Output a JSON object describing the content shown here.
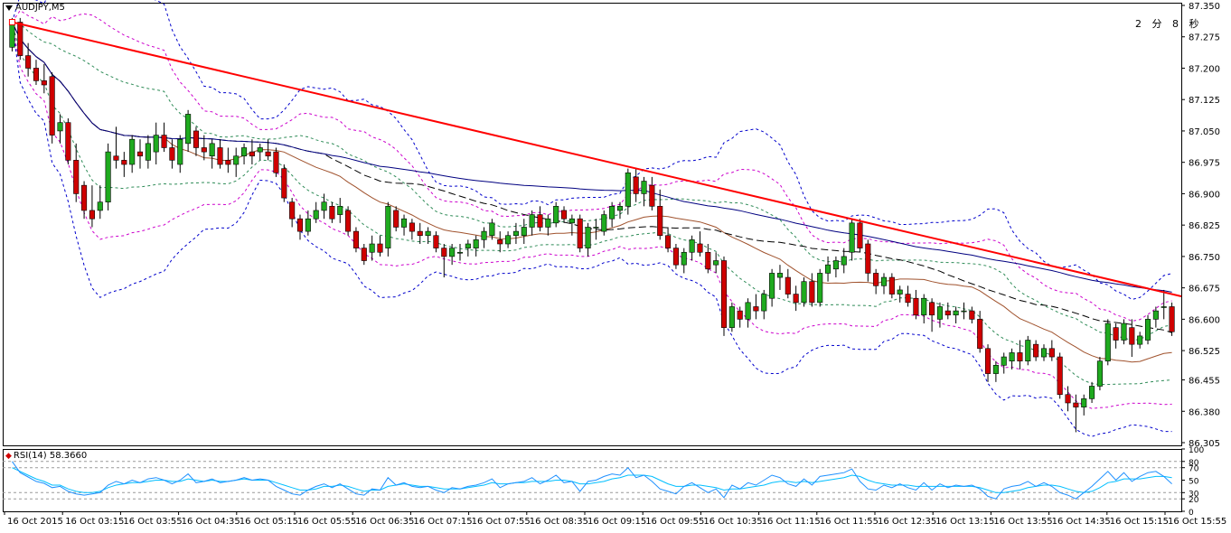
{
  "symbol_label": "AUDJPY,M5",
  "countdown": "2 分 8 秒",
  "rsi_label": "RSI(14) 58.3660",
  "colors": {
    "bull": "#1faa1f",
    "bear": "#d00000",
    "trendline": "#ff0000",
    "ma_dark": "#000000",
    "ma_navy": "#000080",
    "ma_brown": "#a0522d",
    "band_blue": "#0000cc",
    "band_magenta": "#cc00cc",
    "band_green": "#2e8b57",
    "rsi_line": "#1e90ff",
    "rsi_line2": "#00bfff"
  },
  "price_axis": [
    "87.350",
    "87.275",
    "87.200",
    "87.125",
    "87.050",
    "86.975",
    "86.900",
    "86.825",
    "86.750",
    "86.675",
    "86.600",
    "86.525",
    "86.455",
    "86.380",
    "86.305"
  ],
  "rsi_axis": [
    "100",
    "80",
    "70",
    "50",
    "30",
    "20",
    "0"
  ],
  "time_axis": [
    "16 Oct 2015",
    "16 Oct 03:15",
    "16 Oct 03:55",
    "16 Oct 04:35",
    "16 Oct 05:15",
    "16 Oct 05:55",
    "16 Oct 06:35",
    "16 Oct 07:15",
    "16 Oct 07:55",
    "16 Oct 08:35",
    "16 Oct 09:15",
    "16 Oct 09:55",
    "16 Oct 10:35",
    "16 Oct 11:15",
    "16 Oct 11:55",
    "16 Oct 12:35",
    "16 Oct 13:15",
    "16 Oct 13:55",
    "16 Oct 14:35",
    "16 Oct 15:15",
    "16 Oct 15:55"
  ],
  "chart_data": {
    "type": "candlestick",
    "ylim": [
      86.305,
      87.35
    ],
    "rsi_ylim": [
      0,
      100
    ],
    "candles": [
      [
        87.25,
        87.32,
        87.24,
        87.31
      ],
      [
        87.31,
        87.32,
        87.22,
        87.23
      ],
      [
        87.23,
        87.26,
        87.18,
        87.2
      ],
      [
        87.2,
        87.22,
        87.16,
        87.17
      ],
      [
        87.17,
        87.21,
        87.14,
        87.16
      ],
      [
        87.18,
        87.19,
        87.02,
        87.04
      ],
      [
        87.05,
        87.09,
        87.02,
        87.07
      ],
      [
        87.07,
        87.08,
        86.97,
        86.98
      ],
      [
        86.98,
        87.02,
        86.88,
        86.9
      ],
      [
        86.92,
        86.93,
        86.84,
        86.86
      ],
      [
        86.86,
        86.92,
        86.82,
        86.84
      ],
      [
        86.86,
        86.92,
        86.84,
        86.88
      ],
      [
        86.88,
        87.02,
        86.86,
        87.0
      ],
      [
        86.99,
        87.06,
        86.96,
        86.98
      ],
      [
        86.98,
        87.0,
        86.94,
        86.97
      ],
      [
        86.97,
        87.04,
        86.95,
        87.03
      ],
      [
        87.0,
        87.03,
        86.96,
        86.99
      ],
      [
        86.98,
        87.04,
        86.96,
        87.02
      ],
      [
        87.0,
        87.07,
        86.97,
        87.04
      ],
      [
        87.04,
        87.07,
        87.0,
        87.01
      ],
      [
        87.01,
        87.03,
        86.96,
        86.98
      ],
      [
        86.97,
        87.04,
        86.95,
        87.03
      ],
      [
        87.02,
        87.1,
        87.0,
        87.09
      ],
      [
        87.05,
        87.06,
        86.99,
        87.01
      ],
      [
        87.01,
        87.04,
        86.98,
        87.0
      ],
      [
        86.99,
        87.03,
        86.96,
        87.02
      ],
      [
        87.01,
        87.03,
        86.96,
        86.97
      ],
      [
        86.98,
        87.01,
        86.95,
        86.97
      ],
      [
        86.97,
        87.01,
        86.94,
        86.99
      ],
      [
        86.99,
        87.02,
        86.97,
        87.01
      ],
      [
        87.0,
        87.03,
        86.97,
        86.99
      ],
      [
        87.0,
        87.02,
        86.98,
        87.01
      ],
      [
        87.0,
        87.03,
        86.98,
        86.99
      ],
      [
        87.0,
        87.01,
        86.94,
        86.95
      ],
      [
        86.96,
        86.97,
        86.88,
        86.89
      ],
      [
        86.88,
        86.89,
        86.82,
        86.84
      ],
      [
        86.84,
        86.85,
        86.79,
        86.81
      ],
      [
        86.81,
        86.86,
        86.8,
        86.84
      ],
      [
        86.84,
        86.88,
        86.83,
        86.86
      ],
      [
        86.86,
        86.9,
        86.84,
        86.88
      ],
      [
        86.87,
        86.88,
        86.83,
        86.84
      ],
      [
        86.85,
        86.89,
        86.83,
        86.87
      ],
      [
        86.86,
        86.87,
        86.8,
        86.81
      ],
      [
        86.81,
        86.82,
        86.76,
        86.77
      ],
      [
        86.77,
        86.78,
        86.73,
        86.74
      ],
      [
        86.76,
        86.8,
        86.74,
        86.78
      ],
      [
        86.78,
        86.8,
        86.75,
        86.76
      ],
      [
        86.77,
        86.88,
        86.75,
        86.87
      ],
      [
        86.86,
        86.87,
        86.81,
        86.82
      ],
      [
        86.82,
        86.85,
        86.8,
        86.84
      ],
      [
        86.83,
        86.84,
        86.79,
        86.81
      ],
      [
        86.81,
        86.83,
        86.78,
        86.8
      ],
      [
        86.8,
        86.82,
        86.78,
        86.81
      ],
      [
        86.8,
        86.81,
        86.76,
        86.77
      ],
      [
        86.77,
        86.78,
        86.7,
        86.75
      ],
      [
        86.75,
        86.78,
        86.73,
        86.77
      ],
      [
        86.76,
        86.78,
        86.74,
        86.76
      ],
      [
        86.77,
        86.79,
        86.75,
        86.78
      ],
      [
        86.77,
        86.8,
        86.75,
        86.79
      ],
      [
        86.79,
        86.82,
        86.77,
        86.81
      ],
      [
        86.8,
        86.84,
        86.79,
        86.83
      ],
      [
        86.79,
        86.81,
        86.76,
        86.78
      ],
      [
        86.78,
        86.81,
        86.77,
        86.8
      ],
      [
        86.8,
        86.83,
        86.78,
        86.81
      ],
      [
        86.8,
        86.84,
        86.78,
        86.82
      ],
      [
        86.82,
        86.86,
        86.8,
        86.85
      ],
      [
        86.85,
        86.87,
        86.81,
        86.82
      ],
      [
        86.82,
        86.85,
        86.8,
        86.84
      ],
      [
        86.83,
        86.88,
        86.82,
        86.87
      ],
      [
        86.86,
        86.87,
        86.83,
        86.84
      ],
      [
        86.83,
        86.85,
        86.8,
        86.84
      ],
      [
        86.84,
        86.85,
        86.76,
        86.77
      ],
      [
        86.77,
        86.83,
        86.75,
        86.82
      ],
      [
        86.82,
        86.84,
        86.79,
        86.82
      ],
      [
        86.81,
        86.86,
        86.8,
        86.85
      ],
      [
        86.84,
        86.88,
        86.82,
        86.87
      ],
      [
        86.86,
        86.88,
        86.84,
        86.87
      ],
      [
        86.87,
        86.96,
        86.85,
        86.95
      ],
      [
        86.94,
        86.96,
        86.88,
        86.9
      ],
      [
        86.9,
        86.94,
        86.87,
        86.93
      ],
      [
        86.92,
        86.94,
        86.86,
        86.87
      ],
      [
        86.87,
        86.91,
        86.79,
        86.8
      ],
      [
        86.8,
        86.82,
        86.76,
        86.77
      ],
      [
        86.77,
        86.78,
        86.72,
        86.73
      ],
      [
        86.73,
        86.77,
        86.71,
        86.76
      ],
      [
        86.76,
        86.8,
        86.74,
        86.79
      ],
      [
        86.78,
        86.81,
        86.75,
        86.76
      ],
      [
        86.76,
        86.78,
        86.71,
        86.72
      ],
      [
        86.73,
        86.76,
        86.71,
        86.74
      ],
      [
        86.74,
        86.75,
        86.56,
        86.58
      ],
      [
        86.58,
        86.64,
        86.57,
        86.63
      ],
      [
        86.62,
        86.63,
        86.58,
        86.6
      ],
      [
        86.6,
        86.65,
        86.58,
        86.64
      ],
      [
        86.63,
        86.66,
        86.6,
        86.62
      ],
      [
        86.62,
        86.67,
        86.6,
        86.66
      ],
      [
        86.65,
        86.72,
        86.63,
        86.71
      ],
      [
        86.7,
        86.73,
        86.67,
        86.71
      ],
      [
        86.7,
        86.72,
        86.65,
        86.66
      ],
      [
        86.66,
        86.68,
        86.62,
        86.64
      ],
      [
        86.64,
        86.7,
        86.63,
        86.69
      ],
      [
        86.69,
        86.71,
        86.63,
        86.64
      ],
      [
        86.64,
        86.72,
        86.63,
        86.71
      ],
      [
        86.71,
        86.75,
        86.69,
        86.73
      ],
      [
        86.72,
        86.75,
        86.7,
        86.74
      ],
      [
        86.73,
        86.77,
        86.71,
        86.75
      ],
      [
        86.76,
        86.84,
        86.74,
        86.83
      ],
      [
        86.83,
        86.84,
        86.76,
        86.77
      ],
      [
        86.78,
        86.79,
        86.69,
        86.71
      ],
      [
        86.71,
        86.72,
        86.66,
        86.68
      ],
      [
        86.68,
        86.71,
        86.66,
        86.7
      ],
      [
        86.7,
        86.71,
        86.65,
        86.66
      ],
      [
        86.66,
        86.68,
        86.64,
        86.67
      ],
      [
        86.66,
        86.68,
        86.63,
        86.64
      ],
      [
        86.65,
        86.67,
        86.6,
        86.61
      ],
      [
        86.61,
        86.66,
        86.59,
        86.65
      ],
      [
        86.64,
        86.65,
        86.57,
        86.61
      ],
      [
        86.6,
        86.64,
        86.58,
        86.63
      ],
      [
        86.62,
        86.64,
        86.6,
        86.61
      ],
      [
        86.61,
        86.63,
        86.59,
        86.62
      ],
      [
        86.62,
        86.64,
        86.6,
        86.62
      ],
      [
        86.62,
        86.63,
        86.59,
        86.6
      ],
      [
        86.6,
        86.62,
        86.52,
        86.53
      ],
      [
        86.53,
        86.54,
        86.45,
        86.47
      ],
      [
        86.47,
        86.5,
        86.45,
        86.49
      ],
      [
        86.49,
        86.52,
        86.47,
        86.51
      ],
      [
        86.5,
        86.53,
        86.48,
        86.52
      ],
      [
        86.52,
        86.55,
        86.48,
        86.5
      ],
      [
        86.5,
        86.56,
        86.49,
        86.55
      ],
      [
        86.54,
        86.55,
        86.5,
        86.51
      ],
      [
        86.51,
        86.54,
        86.5,
        86.53
      ],
      [
        86.53,
        86.55,
        86.5,
        86.51
      ],
      [
        86.51,
        86.52,
        86.41,
        86.42
      ],
      [
        86.42,
        86.44,
        86.38,
        86.4
      ],
      [
        86.4,
        86.42,
        86.33,
        86.39
      ],
      [
        86.39,
        86.42,
        86.37,
        86.41
      ],
      [
        86.41,
        86.45,
        86.4,
        86.44
      ],
      [
        86.44,
        86.51,
        86.43,
        86.5
      ],
      [
        86.5,
        86.6,
        86.49,
        86.59
      ],
      [
        86.58,
        86.59,
        86.53,
        86.55
      ],
      [
        86.55,
        86.6,
        86.54,
        86.59
      ],
      [
        86.58,
        86.6,
        86.51,
        86.54
      ],
      [
        86.54,
        86.57,
        86.53,
        86.56
      ],
      [
        86.55,
        86.61,
        86.54,
        86.6
      ],
      [
        86.6,
        86.63,
        86.58,
        86.62
      ],
      [
        86.63,
        86.67,
        86.6,
        86.63
      ],
      [
        86.63,
        86.64,
        86.56,
        86.57
      ]
    ],
    "trendline": [
      [
        0,
        87.31
      ],
      [
        145,
        86.66
      ]
    ],
    "rsi": [
      80,
      62,
      55,
      48,
      45,
      38,
      40,
      32,
      28,
      26,
      28,
      30,
      42,
      48,
      44,
      50,
      46,
      52,
      54,
      50,
      44,
      50,
      60,
      46,
      48,
      52,
      46,
      48,
      50,
      54,
      50,
      52,
      50,
      40,
      34,
      28,
      26,
      34,
      40,
      44,
      38,
      44,
      36,
      28,
      26,
      36,
      34,
      54,
      42,
      46,
      40,
      38,
      40,
      34,
      30,
      38,
      36,
      40,
      42,
      46,
      52,
      38,
      44,
      46,
      48,
      54,
      44,
      50,
      58,
      46,
      48,
      32,
      48,
      50,
      56,
      60,
      58,
      70,
      54,
      58,
      48,
      36,
      32,
      28,
      40,
      46,
      38,
      30,
      36,
      22,
      42,
      36,
      46,
      42,
      50,
      58,
      54,
      44,
      40,
      52,
      42,
      56,
      58,
      60,
      62,
      68,
      48,
      36,
      34,
      42,
      38,
      44,
      38,
      34,
      46,
      34,
      44,
      38,
      42,
      40,
      42,
      36,
      24,
      20,
      36,
      40,
      42,
      48,
      40,
      46,
      40,
      30,
      26,
      20,
      30,
      40,
      52,
      64,
      50,
      62,
      48,
      56,
      62,
      64,
      56,
      44
    ],
    "rsi2": [
      70,
      64,
      58,
      52,
      48,
      42,
      42,
      36,
      32,
      30,
      30,
      32,
      38,
      42,
      44,
      46,
      46,
      48,
      50,
      50,
      48,
      48,
      52,
      50,
      48,
      50,
      48,
      48,
      50,
      52,
      50,
      50,
      50,
      46,
      42,
      38,
      34,
      34,
      36,
      40,
      40,
      42,
      40,
      36,
      32,
      34,
      34,
      40,
      42,
      44,
      42,
      40,
      40,
      38,
      36,
      36,
      36,
      38,
      40,
      42,
      46,
      44,
      44,
      46,
      46,
      48,
      48,
      48,
      50,
      50,
      48,
      44,
      44,
      46,
      48,
      52,
      54,
      58,
      58,
      58,
      56,
      50,
      44,
      40,
      40,
      42,
      42,
      40,
      38,
      34,
      36,
      36,
      38,
      40,
      42,
      46,
      48,
      48,
      46,
      48,
      46,
      48,
      50,
      52,
      54,
      58,
      56,
      50,
      46,
      44,
      42,
      42,
      42,
      40,
      40,
      40,
      40,
      40,
      40,
      40,
      40,
      38,
      34,
      30,
      30,
      32,
      34,
      38,
      40,
      42,
      42,
      40,
      36,
      32,
      30,
      32,
      38,
      46,
      48,
      52,
      52,
      52,
      54,
      56,
      56,
      54
    ]
  }
}
